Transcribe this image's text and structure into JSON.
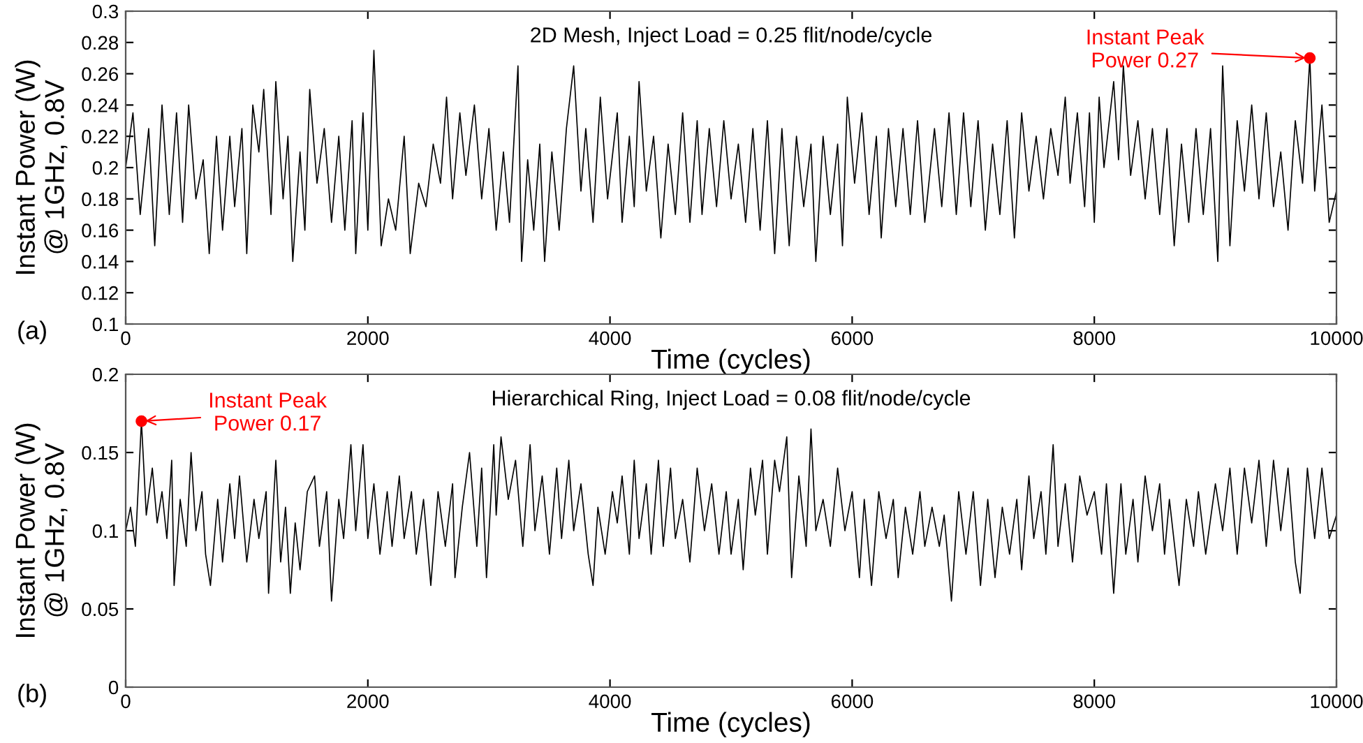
{
  "chart_data": [
    {
      "type": "line",
      "title": "2D Mesh, Inject Load = 0.25 flit/node/cycle",
      "xlabel": "Time (cycles)",
      "ylabel": "Instant Power (W)\n@ 1GHz, 0.8V",
      "xlim": [
        0,
        10000
      ],
      "xticks": [
        0,
        2000,
        4000,
        6000,
        8000,
        10000
      ],
      "ylim": [
        0.1,
        0.3
      ],
      "yticks": [
        0.1,
        0.12,
        0.14,
        0.16,
        0.18,
        0.2,
        0.22,
        0.24,
        0.26,
        0.28,
        0.3
      ],
      "grid": false,
      "legend": false,
      "annotations": [
        "(a)",
        {
          "text": "Instant Peak\nPower 0.27",
          "x": 9780,
          "y": 0.27
        }
      ],
      "series": [
        {
          "color": "#000000",
          "x": [
            0,
            60,
            120,
            190,
            240,
            300,
            360,
            420,
            470,
            520,
            580,
            640,
            690,
            750,
            800,
            860,
            900,
            960,
            1000,
            1050,
            1100,
            1140,
            1200,
            1240,
            1300,
            1340,
            1380,
            1440,
            1480,
            1520,
            1580,
            1640,
            1700,
            1760,
            1810,
            1870,
            1900,
            1960,
            2000,
            2050,
            2110,
            2170,
            2230,
            2300,
            2350,
            2420,
            2480,
            2540,
            2600,
            2650,
            2700,
            2760,
            2810,
            2880,
            2940,
            3000,
            3060,
            3120,
            3170,
            3240,
            3270,
            3320,
            3370,
            3420,
            3460,
            3520,
            3580,
            3640,
            3700,
            3760,
            3800,
            3860,
            3920,
            3980,
            4060,
            4100,
            4160,
            4200,
            4240,
            4300,
            4360,
            4420,
            4480,
            4540,
            4600,
            4660,
            4720,
            4760,
            4820,
            4880,
            4940,
            5000,
            5060,
            5120,
            5180,
            5240,
            5300,
            5360,
            5420,
            5480,
            5540,
            5600,
            5660,
            5700,
            5760,
            5820,
            5880,
            5920,
            5960,
            6020,
            6080,
            6140,
            6200,
            6240,
            6300,
            6360,
            6420,
            6480,
            6540,
            6600,
            6680,
            6740,
            6800,
            6860,
            6920,
            6980,
            7040,
            7100,
            7160,
            7220,
            7280,
            7340,
            7400,
            7460,
            7520,
            7580,
            7640,
            7700,
            7760,
            7800,
            7860,
            7920,
            7960,
            8000,
            8040,
            8080,
            8160,
            8200,
            8240,
            8300,
            8360,
            8420,
            8480,
            8540,
            8600,
            8660,
            8720,
            8780,
            8840,
            8900,
            8960,
            9020,
            9060,
            9120,
            9180,
            9240,
            9300,
            9360,
            9420,
            9480,
            9540,
            9600,
            9660,
            9720,
            9780,
            9820,
            9880,
            9940,
            10000
          ],
          "values": [
            0.2,
            0.235,
            0.17,
            0.225,
            0.15,
            0.24,
            0.17,
            0.235,
            0.165,
            0.24,
            0.18,
            0.205,
            0.145,
            0.22,
            0.16,
            0.22,
            0.175,
            0.225,
            0.145,
            0.24,
            0.21,
            0.25,
            0.17,
            0.255,
            0.18,
            0.22,
            0.14,
            0.21,
            0.16,
            0.25,
            0.19,
            0.225,
            0.165,
            0.22,
            0.16,
            0.23,
            0.145,
            0.235,
            0.16,
            0.275,
            0.15,
            0.18,
            0.16,
            0.22,
            0.145,
            0.19,
            0.175,
            0.215,
            0.19,
            0.245,
            0.18,
            0.235,
            0.195,
            0.24,
            0.18,
            0.225,
            0.16,
            0.21,
            0.165,
            0.265,
            0.14,
            0.205,
            0.16,
            0.215,
            0.14,
            0.21,
            0.16,
            0.225,
            0.265,
            0.185,
            0.225,
            0.165,
            0.245,
            0.18,
            0.235,
            0.165,
            0.22,
            0.175,
            0.255,
            0.185,
            0.22,
            0.155,
            0.215,
            0.17,
            0.235,
            0.165,
            0.23,
            0.17,
            0.225,
            0.175,
            0.23,
            0.18,
            0.215,
            0.165,
            0.225,
            0.16,
            0.23,
            0.145,
            0.225,
            0.15,
            0.22,
            0.175,
            0.215,
            0.14,
            0.22,
            0.17,
            0.215,
            0.15,
            0.245,
            0.19,
            0.235,
            0.17,
            0.22,
            0.155,
            0.225,
            0.175,
            0.225,
            0.17,
            0.23,
            0.165,
            0.225,
            0.175,
            0.235,
            0.17,
            0.235,
            0.175,
            0.23,
            0.16,
            0.215,
            0.17,
            0.23,
            0.155,
            0.235,
            0.185,
            0.22,
            0.18,
            0.225,
            0.195,
            0.245,
            0.19,
            0.235,
            0.175,
            0.235,
            0.165,
            0.245,
            0.2,
            0.255,
            0.205,
            0.265,
            0.195,
            0.23,
            0.18,
            0.225,
            0.17,
            0.225,
            0.15,
            0.215,
            0.165,
            0.225,
            0.17,
            0.225,
            0.14,
            0.265,
            0.15,
            0.23,
            0.185,
            0.24,
            0.18,
            0.235,
            0.175,
            0.21,
            0.16,
            0.23,
            0.19,
            0.27,
            0.185,
            0.24,
            0.165,
            0.185
          ]
        }
      ]
    },
    {
      "type": "line",
      "title": "Hierarchical Ring, Inject Load = 0.08 flit/node/cycle",
      "xlabel": "Time (cycles)",
      "ylabel": "Instant Power (W)\n@ 1GHz, 0.8V",
      "xlim": [
        0,
        10000
      ],
      "xticks": [
        0,
        2000,
        4000,
        6000,
        8000,
        10000
      ],
      "ylim": [
        0,
        0.2
      ],
      "yticks": [
        0,
        0.05,
        0.1,
        0.15,
        0.2
      ],
      "grid": false,
      "legend": false,
      "annotations": [
        "(b)",
        {
          "text": "Instant Peak\nPower 0.17",
          "x": 130,
          "y": 0.17
        }
      ],
      "series": [
        {
          "color": "#000000",
          "x": [
            0,
            40,
            80,
            130,
            170,
            220,
            260,
            300,
            340,
            380,
            400,
            450,
            500,
            540,
            580,
            630,
            660,
            700,
            760,
            800,
            860,
            900,
            940,
            1000,
            1060,
            1100,
            1160,
            1180,
            1240,
            1280,
            1320,
            1360,
            1400,
            1440,
            1500,
            1560,
            1600,
            1660,
            1700,
            1760,
            1800,
            1860,
            1900,
            1960,
            2000,
            2050,
            2100,
            2160,
            2200,
            2260,
            2300,
            2360,
            2400,
            2460,
            2520,
            2580,
            2640,
            2700,
            2720,
            2780,
            2840,
            2900,
            2940,
            2980,
            3040,
            3060,
            3100,
            3160,
            3220,
            3280,
            3340,
            3380,
            3440,
            3500,
            3560,
            3600,
            3660,
            3700,
            3760,
            3820,
            3860,
            3900,
            3960,
            4020,
            4060,
            4100,
            4160,
            4200,
            4240,
            4300,
            4340,
            4400,
            4440,
            4500,
            4540,
            4600,
            4660,
            4720,
            4780,
            4840,
            4900,
            4960,
            5000,
            5060,
            5100,
            5160,
            5200,
            5260,
            5300,
            5360,
            5400,
            5460,
            5500,
            5560,
            5620,
            5660,
            5700,
            5760,
            5820,
            5880,
            5940,
            6000,
            6060,
            6100,
            6160,
            6220,
            6280,
            6340,
            6380,
            6440,
            6500,
            6560,
            6600,
            6660,
            6720,
            6760,
            6820,
            6880,
            6940,
            7000,
            7060,
            7120,
            7180,
            7240,
            7300,
            7360,
            7400,
            7460,
            7500,
            7560,
            7600,
            7660,
            7700,
            7760,
            7820,
            7880,
            7940,
            8000,
            8060,
            8100,
            8160,
            8220,
            8260,
            8320,
            8360,
            8420,
            8480,
            8540,
            8580,
            8620,
            8700,
            8760,
            8820,
            8860,
            8920,
            9000,
            9060,
            9120,
            9180,
            9240,
            9300,
            9360,
            9420,
            9480,
            9540,
            9600,
            9660,
            9700,
            9760,
            9820,
            9880,
            9940,
            10000
          ],
          "values": [
            0.1,
            0.115,
            0.09,
            0.17,
            0.11,
            0.14,
            0.105,
            0.125,
            0.095,
            0.145,
            0.065,
            0.12,
            0.09,
            0.15,
            0.1,
            0.125,
            0.085,
            0.065,
            0.12,
            0.08,
            0.13,
            0.095,
            0.135,
            0.08,
            0.12,
            0.095,
            0.125,
            0.06,
            0.145,
            0.08,
            0.115,
            0.06,
            0.105,
            0.075,
            0.125,
            0.135,
            0.09,
            0.125,
            0.055,
            0.12,
            0.095,
            0.155,
            0.1,
            0.155,
            0.095,
            0.13,
            0.085,
            0.125,
            0.09,
            0.135,
            0.095,
            0.125,
            0.085,
            0.12,
            0.065,
            0.125,
            0.09,
            0.13,
            0.07,
            0.115,
            0.15,
            0.09,
            0.14,
            0.07,
            0.155,
            0.11,
            0.16,
            0.12,
            0.145,
            0.09,
            0.155,
            0.1,
            0.135,
            0.085,
            0.14,
            0.095,
            0.145,
            0.1,
            0.13,
            0.085,
            0.065,
            0.115,
            0.085,
            0.125,
            0.105,
            0.135,
            0.085,
            0.145,
            0.095,
            0.13,
            0.085,
            0.145,
            0.09,
            0.14,
            0.095,
            0.12,
            0.08,
            0.14,
            0.1,
            0.13,
            0.085,
            0.125,
            0.085,
            0.12,
            0.075,
            0.14,
            0.11,
            0.145,
            0.085,
            0.145,
            0.125,
            0.16,
            0.07,
            0.135,
            0.09,
            0.165,
            0.1,
            0.12,
            0.09,
            0.14,
            0.1,
            0.125,
            0.07,
            0.12,
            0.065,
            0.125,
            0.095,
            0.12,
            0.07,
            0.115,
            0.085,
            0.125,
            0.09,
            0.115,
            0.09,
            0.11,
            0.055,
            0.125,
            0.085,
            0.125,
            0.065,
            0.12,
            0.07,
            0.115,
            0.085,
            0.12,
            0.075,
            0.135,
            0.095,
            0.125,
            0.085,
            0.155,
            0.09,
            0.13,
            0.08,
            0.135,
            0.11,
            0.125,
            0.085,
            0.13,
            0.06,
            0.13,
            0.085,
            0.12,
            0.08,
            0.135,
            0.1,
            0.13,
            0.085,
            0.12,
            0.065,
            0.12,
            0.09,
            0.125,
            0.085,
            0.13,
            0.1,
            0.14,
            0.085,
            0.14,
            0.105,
            0.145,
            0.09,
            0.145,
            0.1,
            0.14,
            0.08,
            0.06,
            0.14,
            0.095,
            0.14,
            0.095,
            0.11
          ]
        }
      ]
    }
  ]
}
